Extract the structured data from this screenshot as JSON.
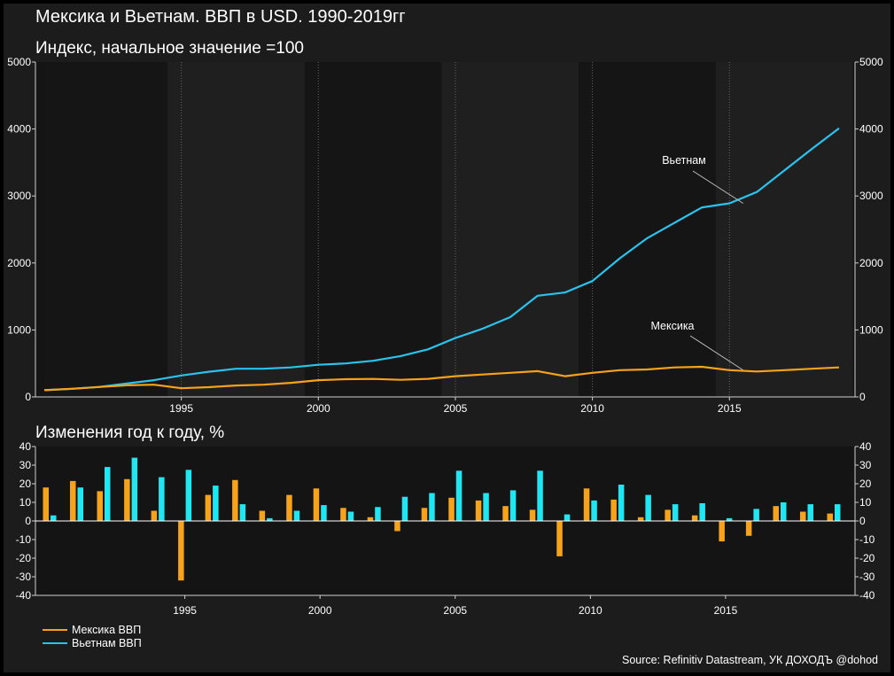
{
  "title": "Мексика и Вьетнам. ВВП в USD. 1990-2019гг",
  "source": "Source: Refinitiv Datastream, УК ДОХОДЪ @dohod",
  "colors": {
    "mexico": "#f7a21b",
    "vietnam": "#29c3ee",
    "bars_vietnam": "#20e6f2"
  },
  "chart_data": [
    {
      "type": "line",
      "title": "Индекс, начальное значение =100",
      "x": [
        1990,
        1991,
        1992,
        1993,
        1994,
        1995,
        1996,
        1997,
        1998,
        1999,
        2000,
        2001,
        2002,
        2003,
        2004,
        2005,
        2006,
        2007,
        2008,
        2009,
        2010,
        2011,
        2012,
        2013,
        2014,
        2015,
        2016,
        2017,
        2018,
        2019
      ],
      "xticks": [
        "1995",
        "2000",
        "2005",
        "2010",
        "2015"
      ],
      "yticks": [
        "0",
        "1000",
        "2000",
        "3000",
        "4000",
        "5000"
      ],
      "ylim": [
        0,
        5000
      ],
      "series": [
        {
          "name": "Вьетнам",
          "values": [
            100,
            120,
            150,
            200,
            250,
            320,
            375,
            420,
            420,
            440,
            480,
            500,
            540,
            610,
            710,
            880,
            1020,
            1190,
            1510,
            1560,
            1730,
            2070,
            2370,
            2600,
            2830,
            2890,
            3060,
            3380,
            3700,
            4010
          ]
        },
        {
          "name": "Мексика",
          "values": [
            100,
            122,
            148,
            173,
            183,
            130,
            145,
            170,
            183,
            210,
            250,
            265,
            268,
            255,
            270,
            310,
            335,
            360,
            385,
            310,
            360,
            400,
            410,
            440,
            450,
            400,
            380,
            400,
            420,
            440
          ]
        }
      ],
      "annotations": [
        {
          "text": "Вьетнам",
          "year": 2015.5,
          "value": 2890
        },
        {
          "text": "Мексика",
          "year": 2015.5,
          "value": 400
        }
      ]
    },
    {
      "type": "bar",
      "title": "Изменения год к году, %",
      "x": [
        1990,
        1991,
        1992,
        1993,
        1994,
        1995,
        1996,
        1997,
        1998,
        1999,
        2000,
        2001,
        2002,
        2003,
        2004,
        2005,
        2006,
        2007,
        2008,
        2009,
        2010,
        2011,
        2012,
        2013,
        2014,
        2015,
        2016,
        2017,
        2018,
        2019
      ],
      "xticks": [
        "1995",
        "2000",
        "2005",
        "2010",
        "2015"
      ],
      "yticks": [
        "-40",
        "-30",
        "-20",
        "-10",
        "0",
        "10",
        "20",
        "30",
        "40"
      ],
      "ylim": [
        -40,
        40
      ],
      "series": [
        {
          "name": "Мексика ВВП",
          "values": [
            18,
            21.5,
            16,
            22.5,
            5.5,
            -32,
            14,
            22,
            5.5,
            14,
            17.5,
            7,
            2,
            -5.5,
            7,
            12.5,
            11,
            8,
            6,
            -19,
            17.5,
            11.5,
            2,
            6,
            3,
            -11,
            -8,
            8,
            5,
            4
          ]
        },
        {
          "name": "Вьетнам ВВП",
          "values": [
            3,
            18,
            29,
            34,
            23.5,
            27.5,
            19,
            9,
            1.5,
            5.5,
            8.5,
            5,
            7.5,
            13,
            15,
            27,
            15,
            16.5,
            27,
            3.5,
            11,
            19.5,
            14,
            9,
            9.5,
            1.5,
            6.5,
            10,
            9,
            9
          ]
        }
      ]
    }
  ]
}
